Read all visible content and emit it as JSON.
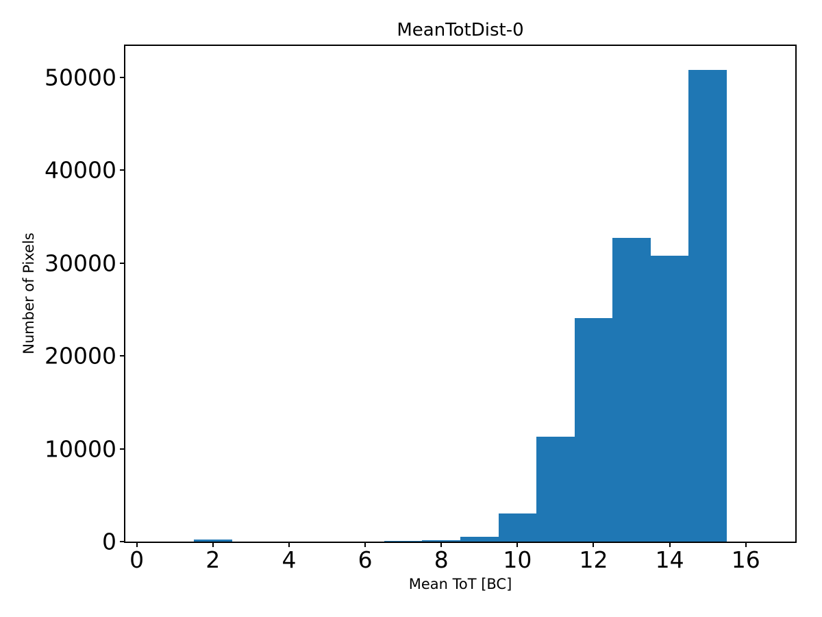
{
  "chart_data": {
    "type": "bar",
    "subtype": "histogram",
    "title": "MeanTotDist-0",
    "xlabel": "Mean ToT [BC]",
    "ylabel": "Number of Pixels",
    "xlim": [
      -0.3,
      17.3
    ],
    "ylim": [
      0,
      53400
    ],
    "xticks": [
      0,
      2,
      4,
      6,
      8,
      10,
      12,
      14,
      16
    ],
    "yticks": [
      0,
      10000,
      20000,
      30000,
      40000,
      50000
    ],
    "grid": false,
    "legend": null,
    "bar_color": "#1f77b4",
    "spine_color": "#000000",
    "background_color": "#ffffff",
    "bins": [
      {
        "x0": 1.5,
        "x1": 2.5,
        "count": 200
      },
      {
        "x0": 6.5,
        "x1": 7.5,
        "count": 100
      },
      {
        "x0": 7.5,
        "x1": 8.5,
        "count": 130
      },
      {
        "x0": 8.5,
        "x1": 9.5,
        "count": 500
      },
      {
        "x0": 9.5,
        "x1": 10.5,
        "count": 3000
      },
      {
        "x0": 10.5,
        "x1": 11.5,
        "count": 11300
      },
      {
        "x0": 11.5,
        "x1": 12.5,
        "count": 24100
      },
      {
        "x0": 12.5,
        "x1": 13.5,
        "count": 32700
      },
      {
        "x0": 13.5,
        "x1": 14.5,
        "count": 30800
      },
      {
        "x0": 14.5,
        "x1": 15.5,
        "count": 50800
      }
    ]
  }
}
